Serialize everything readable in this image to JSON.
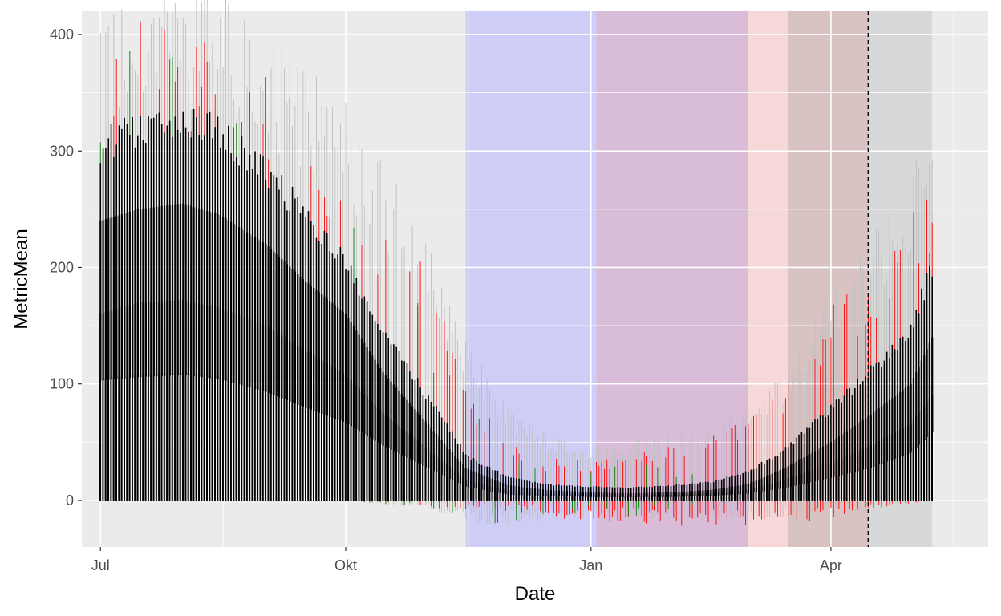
{
  "chart_data": {
    "type": "bar",
    "title": "",
    "xlabel": "Date",
    "ylabel": "MetricMean",
    "xlim": [
      "2021-06-24",
      "2022-05-30"
    ],
    "ylim": [
      -40,
      420
    ],
    "x_ticks": [
      {
        "date": "2021-07-01",
        "label": "Jul"
      },
      {
        "date": "2021-10-01",
        "label": "Okt"
      },
      {
        "date": "2022-01-01",
        "label": "Jan"
      },
      {
        "date": "2022-04-01",
        "label": "Apr"
      }
    ],
    "y_ticks": [
      0,
      100,
      200,
      300,
      400
    ],
    "grid": true,
    "shaded_periods": [
      {
        "start": "2021-11-15",
        "end": "2022-01-03",
        "color": "#b4b4ff"
      },
      {
        "start": "2022-01-03",
        "end": "2022-03-01",
        "color": "#c896c8"
      },
      {
        "start": "2022-03-01",
        "end": "2022-03-16",
        "color": "#ffc8c8"
      },
      {
        "start": "2022-03-16",
        "end": "2022-04-15",
        "color": "#c8a0a0"
      },
      {
        "start": "2022-04-15",
        "end": "2022-05-09",
        "color": "#c8c8c8"
      }
    ],
    "reference_line": {
      "date": "2022-04-15",
      "style": "dashed",
      "color": "#000000"
    },
    "series": [
      {
        "role": "upper-band-grey",
        "color": "#bebebe",
        "x": [
          "2021-07-01",
          "2021-07-15",
          "2021-08-01",
          "2021-08-15",
          "2021-09-01",
          "2021-09-15",
          "2021-10-01",
          "2021-10-15",
          "2021-11-01",
          "2021-11-15",
          "2021-12-01",
          "2021-12-15",
          "2022-01-01",
          "2022-01-15",
          "2022-02-01",
          "2022-02-15",
          "2022-03-01",
          "2022-03-15",
          "2022-04-01",
          "2022-04-15",
          "2022-05-01",
          "2022-05-09"
        ],
        "values": [
          375,
          390,
          395,
          385,
          360,
          330,
          300,
          255,
          200,
          120,
          70,
          50,
          40,
          45,
          50,
          55,
          70,
          100,
          165,
          195,
          250,
          285
        ]
      },
      {
        "role": "upper-band-red",
        "color": "#ff0000",
        "x": [
          "2021-07-01",
          "2021-07-15",
          "2021-08-01",
          "2021-08-15",
          "2021-09-01",
          "2021-09-15",
          "2021-10-01",
          "2021-10-15",
          "2021-11-01",
          "2021-11-15",
          "2021-12-01",
          "2021-12-15",
          "2022-01-01",
          "2022-01-15",
          "2022-02-01",
          "2022-02-15",
          "2022-03-01",
          "2022-03-15",
          "2022-04-01",
          "2022-04-15",
          "2022-05-01",
          "2022-05-09"
        ],
        "values": [
          350,
          375,
          385,
          370,
          345,
          310,
          280,
          220,
          180,
          90,
          45,
          35,
          30,
          35,
          45,
          50,
          70,
          95,
          160,
          175,
          245,
          260
        ]
      },
      {
        "role": "upper-band-green",
        "color": "#008000",
        "x": [
          "2021-07-01",
          "2021-07-15",
          "2021-08-01",
          "2021-08-15",
          "2021-09-01",
          "2021-09-15",
          "2021-10-01",
          "2021-10-15",
          "2021-11-01",
          "2021-11-15",
          "2021-12-01",
          "2021-12-15",
          "2022-01-01",
          "2022-01-15",
          "2022-02-01",
          "2022-02-15",
          "2022-03-01",
          "2022-03-15",
          "2022-04-01",
          "2022-04-15",
          "2022-05-01",
          "2022-05-09"
        ],
        "values": [
          355,
          360,
          370,
          340,
          320,
          290,
          250,
          260,
          140,
          75,
          40,
          30,
          25,
          30,
          25,
          20,
          20,
          25,
          40,
          40,
          50,
          70
        ]
      },
      {
        "role": "metric-high",
        "color": "#000000",
        "x": [
          "2021-07-01",
          "2021-07-15",
          "2021-08-01",
          "2021-08-15",
          "2021-09-01",
          "2021-09-15",
          "2021-10-01",
          "2021-10-15",
          "2021-11-01",
          "2021-11-15",
          "2021-12-01",
          "2021-12-15",
          "2022-01-01",
          "2022-01-15",
          "2022-02-01",
          "2022-02-15",
          "2022-03-01",
          "2022-03-15",
          "2022-04-01",
          "2022-04-15",
          "2022-05-01",
          "2022-05-09"
        ],
        "values": [
          310,
          325,
          335,
          320,
          290,
          250,
          210,
          150,
          90,
          40,
          20,
          14,
          12,
          11,
          13,
          16,
          25,
          45,
          80,
          110,
          150,
          205
        ]
      },
      {
        "role": "metric-mid",
        "color": "#000000",
        "x": [
          "2021-07-01",
          "2021-07-15",
          "2021-08-01",
          "2021-08-15",
          "2021-09-01",
          "2021-09-15",
          "2021-10-01",
          "2021-10-15",
          "2021-11-01",
          "2021-11-15",
          "2021-12-01",
          "2021-12-15",
          "2022-01-01",
          "2022-01-15",
          "2022-02-01",
          "2022-02-15",
          "2022-03-01",
          "2022-03-15",
          "2022-04-01",
          "2022-04-15",
          "2022-05-01",
          "2022-05-09"
        ],
        "values": [
          240,
          250,
          255,
          245,
          220,
          190,
          160,
          110,
          65,
          28,
          13,
          9,
          7,
          6,
          7,
          9,
          14,
          28,
          50,
          72,
          100,
          140
        ]
      },
      {
        "role": "metric-low",
        "color": "#000000",
        "x": [
          "2021-07-01",
          "2021-07-15",
          "2021-08-01",
          "2021-08-15",
          "2021-09-01",
          "2021-09-15",
          "2021-10-01",
          "2021-10-15",
          "2021-11-01",
          "2021-11-15",
          "2021-12-01",
          "2021-12-15",
          "2022-01-01",
          "2022-01-15",
          "2022-02-01",
          "2022-02-15",
          "2022-03-01",
          "2022-03-15",
          "2022-04-01",
          "2022-04-15",
          "2022-05-01",
          "2022-05-09"
        ],
        "values": [
          160,
          170,
          172,
          165,
          150,
          130,
          108,
          75,
          44,
          18,
          8,
          6,
          5,
          4,
          5,
          6,
          9,
          18,
          32,
          46,
          66,
          90
        ]
      },
      {
        "role": "metric-base",
        "color": "#000000",
        "x": [
          "2021-07-01",
          "2021-07-15",
          "2021-08-01",
          "2021-08-15",
          "2021-09-01",
          "2021-09-15",
          "2021-10-01",
          "2021-10-15",
          "2021-11-01",
          "2021-11-15",
          "2021-12-01",
          "2021-12-15",
          "2022-01-01",
          "2022-01-15",
          "2022-02-01",
          "2022-02-15",
          "2022-03-01",
          "2022-03-15",
          "2022-04-01",
          "2022-04-15",
          "2022-05-01",
          "2022-05-09"
        ],
        "values": [
          105,
          108,
          110,
          106,
          95,
          82,
          68,
          48,
          28,
          12,
          5,
          4,
          3,
          3,
          3,
          4,
          6,
          11,
          20,
          28,
          42,
          60
        ]
      },
      {
        "role": "lower-band-grey",
        "color": "#bebebe",
        "x": [
          "2021-07-01",
          "2021-08-15",
          "2021-10-01",
          "2021-11-01",
          "2021-11-15",
          "2021-12-01",
          "2021-12-15",
          "2022-01-01",
          "2022-01-15",
          "2022-02-01",
          "2022-02-15",
          "2022-03-01",
          "2022-03-15",
          "2022-04-01",
          "2022-04-15",
          "2022-05-09"
        ],
        "values": [
          0,
          0,
          0,
          -5,
          -12,
          -15,
          -12,
          -10,
          -10,
          -12,
          -12,
          -10,
          -10,
          -5,
          0,
          0
        ]
      },
      {
        "role": "lower-band-red",
        "color": "#ff0000",
        "x": [
          "2021-07-01",
          "2021-08-15",
          "2021-10-01",
          "2021-11-01",
          "2021-11-15",
          "2021-12-01",
          "2021-12-15",
          "2022-01-01",
          "2022-01-15",
          "2022-02-01",
          "2022-02-15",
          "2022-03-01",
          "2022-03-15",
          "2022-04-01",
          "2022-04-15",
          "2022-05-09"
        ],
        "values": [
          0,
          0,
          0,
          -5,
          -5,
          -5,
          -10,
          -12,
          -12,
          -15,
          -15,
          -15,
          -15,
          -10,
          -5,
          0
        ]
      },
      {
        "role": "lower-band-green",
        "color": "#008000",
        "x": [
          "2021-07-01",
          "2021-08-15",
          "2021-10-01",
          "2021-11-01",
          "2021-11-15",
          "2021-12-01",
          "2021-12-15",
          "2022-01-01",
          "2022-01-15",
          "2022-02-01",
          "2022-02-15",
          "2022-03-01",
          "2022-03-15",
          "2022-04-01",
          "2022-04-15",
          "2022-05-09"
        ],
        "values": [
          0,
          0,
          0,
          -5,
          -10,
          -15,
          -12,
          -8,
          -10,
          -5,
          -3,
          0,
          0,
          0,
          0,
          0
        ]
      }
    ]
  }
}
